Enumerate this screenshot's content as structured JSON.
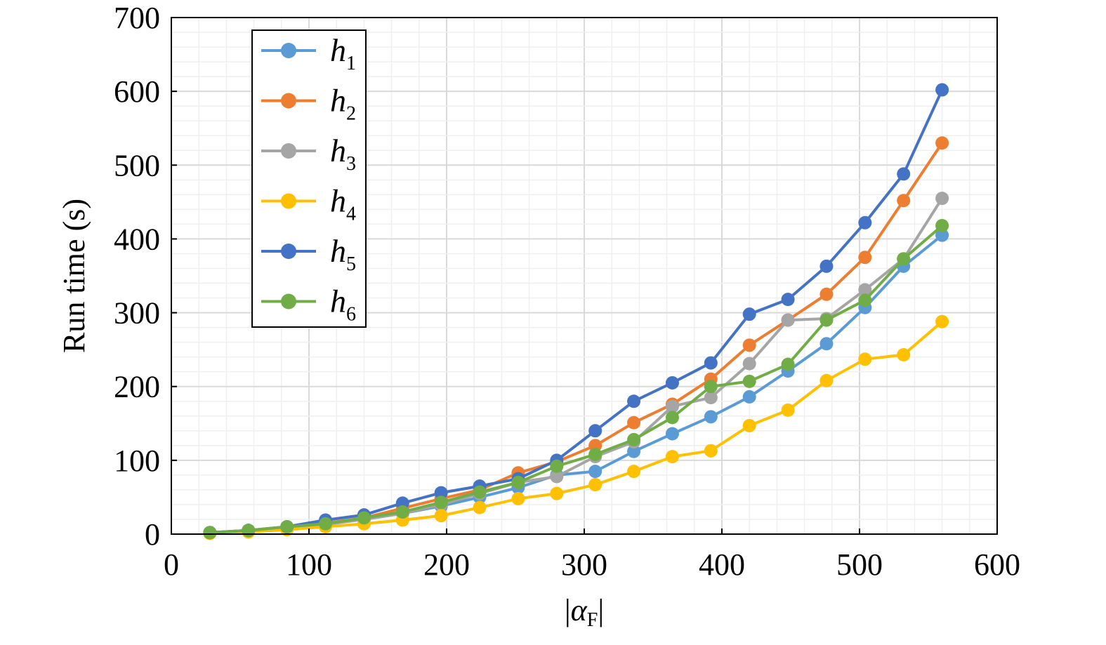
{
  "chart_data": {
    "type": "line",
    "title": "",
    "xlabel": "|α_F|",
    "xlabel_main": "α",
    "xlabel_sub": "F",
    "ylabel": "Run time (s)",
    "xlim": [
      0,
      600
    ],
    "ylim": [
      0,
      700
    ],
    "xticks": [
      0,
      100,
      200,
      300,
      400,
      500,
      600
    ],
    "yticks": [
      0,
      100,
      200,
      300,
      400,
      500,
      600,
      700
    ],
    "grid": true,
    "legend_position": "top-left",
    "x": [
      28,
      56,
      84,
      112,
      140,
      168,
      196,
      224,
      252,
      280,
      308,
      336,
      364,
      392,
      420,
      448,
      476,
      504,
      532,
      560
    ],
    "series": [
      {
        "name": "h1",
        "base": "h",
        "sub": "1",
        "color": "#5B9BD5",
        "values": [
          2,
          5,
          9,
          15,
          20,
          28,
          38,
          50,
          63,
          80,
          85,
          112,
          136,
          159,
          186,
          221,
          258,
          307,
          363,
          405
        ]
      },
      {
        "name": "h2",
        "base": "h",
        "sub": "2",
        "color": "#ED7D31",
        "values": [
          2,
          5,
          9,
          15,
          22,
          35,
          48,
          60,
          83,
          98,
          120,
          151,
          176,
          210,
          256,
          290,
          325,
          375,
          452,
          530
        ]
      },
      {
        "name": "h3",
        "base": "h",
        "sub": "3",
        "color": "#A5A5A5",
        "values": [
          2,
          5,
          8,
          13,
          20,
          28,
          40,
          55,
          70,
          78,
          105,
          125,
          173,
          185,
          231,
          290,
          292,
          331,
          373,
          455
        ]
      },
      {
        "name": "h4",
        "base": "h",
        "sub": "4",
        "color": "#FFC000",
        "values": [
          1,
          3,
          6,
          10,
          14,
          19,
          25,
          36,
          48,
          55,
          67,
          85,
          105,
          113,
          147,
          168,
          208,
          237,
          243,
          288
        ]
      },
      {
        "name": "h5",
        "base": "h",
        "sub": "5",
        "color": "#4472C4",
        "values": [
          2,
          5,
          10,
          19,
          26,
          42,
          56,
          65,
          75,
          100,
          140,
          180,
          205,
          232,
          298,
          318,
          363,
          422,
          488,
          602
        ]
      },
      {
        "name": "h6",
        "base": "h",
        "sub": "6",
        "color": "#70AD47",
        "values": [
          2,
          5,
          10,
          14,
          22,
          30,
          43,
          57,
          70,
          92,
          108,
          128,
          158,
          200,
          207,
          230,
          290,
          317,
          373,
          418
        ]
      }
    ]
  }
}
